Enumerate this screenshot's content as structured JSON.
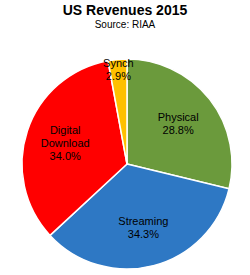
{
  "chart_data": {
    "type": "pie",
    "title": "US Revenues 2015",
    "subtitle": "Source: RIAA",
    "categories": [
      "Physical",
      "Streaming",
      "Digital Download",
      "Synch"
    ],
    "values": [
      28.8,
      34.3,
      34.0,
      2.9
    ],
    "value_labels": [
      "28.8%",
      "34.3%",
      "34.0%",
      "2.9%"
    ],
    "colors": [
      "#6b9a3c",
      "#2e78c4",
      "#ff0000",
      "#ffc000"
    ],
    "data_labels": true
  }
}
